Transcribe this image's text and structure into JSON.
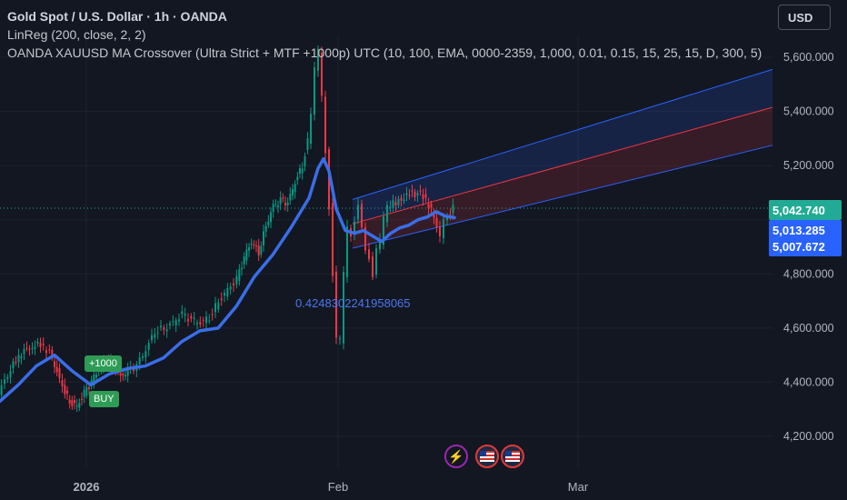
{
  "header": {
    "title": "Gold Spot / U.S. Dollar · 1h · OANDA",
    "indicator_1": "LinReg (200, close, 2, 2)",
    "indicator_2": "OANDA XAUUSD MA Crossover (Ultra Strict + MTF +1000p) UTC (10, 100, EMA, 0000-2359, 1,000, 0.01, 0.15, 15, 25, 15, D, 300, 5)"
  },
  "currency_button": "USD",
  "price_scale": {
    "ticks": [
      "5,600.000",
      "5,400.000",
      "5,200.000",
      "4,800.000",
      "4,600.000",
      "4,400.000",
      "4,200.000"
    ],
    "last_price": "5,042.740",
    "labels": [
      "5,013.285",
      "5,007.672"
    ],
    "colors": {
      "last_price": "#22ab94",
      "ma": "#2962ff",
      "linreg": "#2962ff"
    }
  },
  "time_scale": {
    "ticks": [
      "2026",
      "Feb",
      "Mar"
    ]
  },
  "signals": {
    "target": "+1000",
    "buy": "BUY"
  },
  "annotation": "0.4248302241958065",
  "events": [
    "lightning-icon",
    "us-flag-icon",
    "us-flag-icon"
  ],
  "chart_data": {
    "type": "line",
    "title": "Gold Spot / U.S. Dollar · 1h · OANDA",
    "ylim": [
      4150,
      5680
    ],
    "x_labels": [
      "2026",
      "Feb",
      "Mar"
    ],
    "grid": true,
    "series": [
      {
        "name": "price",
        "x": [
          0,
          10,
          22,
          34,
          46,
          56,
          64,
          70,
          78,
          86,
          94,
          102,
          110,
          118,
          126,
          134,
          142,
          152,
          162,
          172,
          182,
          192,
          202,
          212,
          222,
          232,
          242,
          252,
          262,
          270,
          278,
          286,
          294,
          302,
          310,
          318,
          326,
          334,
          340,
          344,
          348,
          352,
          356,
          360,
          364,
          368,
          372,
          376,
          380,
          384,
          388,
          392,
          396,
          400,
          404,
          408,
          412,
          416,
          420,
          424,
          428,
          434,
          440,
          446,
          452,
          458,
          464,
          470,
          476,
          482,
          486,
          490,
          494,
          500
        ],
        "values": [
          4360,
          4430,
          4500,
          4530,
          4540,
          4510,
          4440,
          4380,
          4330,
          4310,
          4360,
          4400,
          4450,
          4480,
          4470,
          4420,
          4440,
          4460,
          4520,
          4590,
          4600,
          4620,
          4650,
          4630,
          4620,
          4640,
          4700,
          4740,
          4780,
          4860,
          4920,
          4880,
          4980,
          5050,
          5070,
          5060,
          5140,
          5200,
          5290,
          5400,
          5560,
          5620,
          5450,
          5250,
          5050,
          4800,
          4560,
          4550,
          4800,
          4980,
          4950,
          5000,
          5050,
          4960,
          4880,
          4860,
          4800,
          4900,
          4920,
          5000,
          5050,
          5060,
          5070,
          5080,
          5100,
          5090,
          5100,
          5070,
          5040,
          4980,
          4930,
          4990,
          5010,
          5043
        ]
      },
      {
        "name": "EMA",
        "x": [
          0,
          20,
          40,
          60,
          80,
          100,
          120,
          140,
          160,
          180,
          200,
          220,
          240,
          260,
          280,
          300,
          320,
          340,
          350,
          356,
          362,
          370,
          380,
          390,
          400,
          410,
          420,
          430,
          440,
          450,
          460,
          470,
          480,
          490,
          500
        ],
        "values": [
          4330,
          4390,
          4460,
          4500,
          4440,
          4390,
          4430,
          4450,
          4460,
          4490,
          4550,
          4590,
          4600,
          4680,
          4790,
          4870,
          4970,
          5080,
          5190,
          5225,
          5180,
          5040,
          4960,
          4950,
          4960,
          4940,
          4920,
          4950,
          4970,
          4980,
          5000,
          5010,
          5030,
          5013,
          5008
        ]
      }
    ],
    "linreg_channel": {
      "x": [
        388,
        850
      ],
      "upper": [
        5075,
        5555
      ],
      "middle": [
        4985,
        5415
      ],
      "lower": [
        4895,
        5275
      ]
    }
  }
}
